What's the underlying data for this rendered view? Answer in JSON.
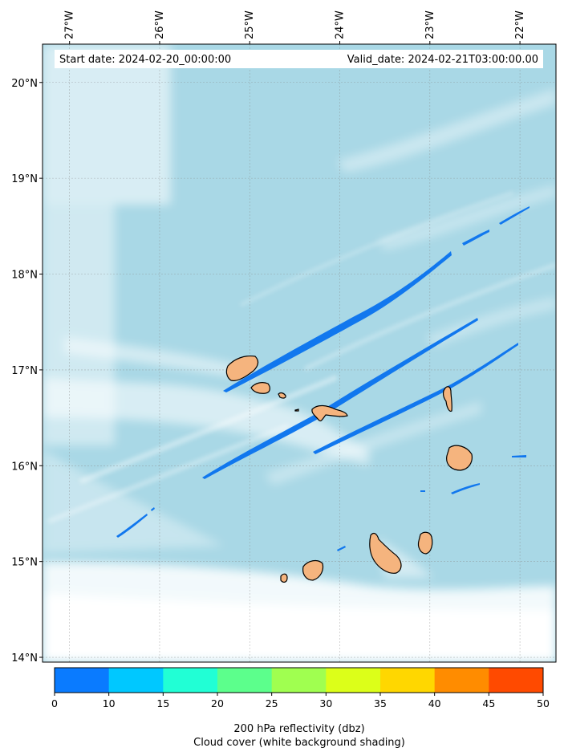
{
  "header": {
    "start_date": "Start date: 2024-02-20_00:00:00",
    "valid_date": "Valid_date: 2024-02-21T03:00:00.00"
  },
  "map": {
    "lon_range": [
      -27.3,
      -21.6
    ],
    "lat_range": [
      13.95,
      20.4
    ],
    "lon_ticks": [
      {
        "value": -27,
        "label": "27°W"
      },
      {
        "value": -26,
        "label": "26°W"
      },
      {
        "value": -25,
        "label": "25°W"
      },
      {
        "value": -24,
        "label": "24°W"
      },
      {
        "value": -23,
        "label": "23°W"
      },
      {
        "value": -22,
        "label": "22°W"
      }
    ],
    "lat_ticks": [
      {
        "value": 20,
        "label": "20°N"
      },
      {
        "value": 19,
        "label": "19°N"
      },
      {
        "value": 18,
        "label": "18°N"
      },
      {
        "value": 17,
        "label": "17°N"
      },
      {
        "value": 16,
        "label": "16°N"
      },
      {
        "value": 15,
        "label": "15°N"
      },
      {
        "value": 14,
        "label": "14°N"
      }
    ],
    "colors": {
      "ocean": "#a9d8e6",
      "cloud": "#ffffff",
      "land": "#f5b47e",
      "coast": "#000000",
      "band": "#1177ee"
    }
  },
  "colorbar": {
    "bounds": [
      0,
      10,
      15,
      20,
      25,
      30,
      35,
      40,
      45,
      50
    ],
    "colors": [
      "#0a7bff",
      "#00c8ff",
      "#21ffd5",
      "#5cff8c",
      "#a0ff50",
      "#dcff19",
      "#ffd700",
      "#ff8c00",
      "#ff4a00"
    ],
    "title": "200 hPa reflectivity (dbz)",
    "subtitle": "Cloud cover (white background shading)"
  }
}
